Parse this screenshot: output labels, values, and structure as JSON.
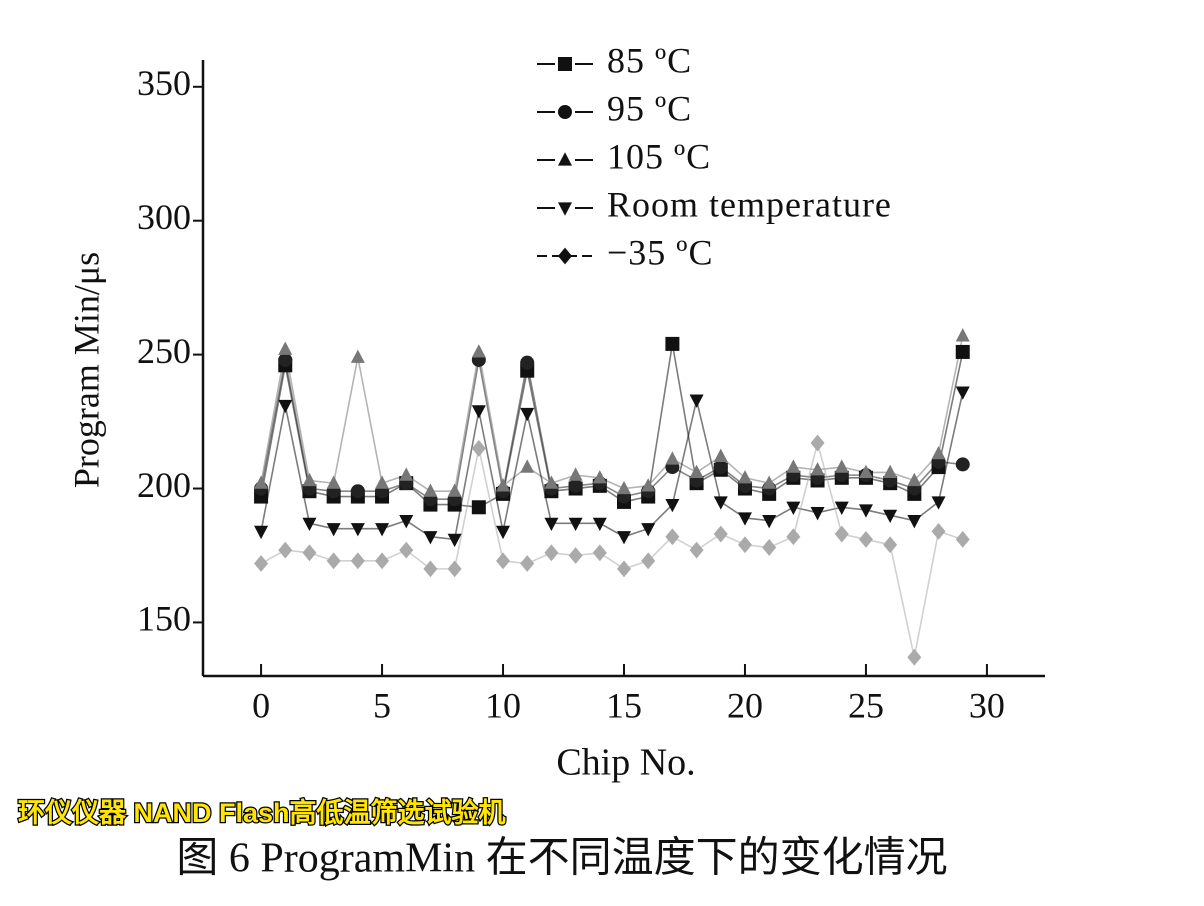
{
  "chart_data": {
    "type": "line",
    "xlabel": "Chip No.",
    "ylabel": "Program Min/μs",
    "x": [
      0,
      1,
      2,
      3,
      4,
      5,
      6,
      7,
      8,
      9,
      10,
      11,
      12,
      13,
      14,
      15,
      16,
      17,
      18,
      19,
      20,
      21,
      22,
      23,
      24,
      25,
      26,
      27,
      28,
      29
    ],
    "series": [
      {
        "name": "85 ºC",
        "color": "#111111",
        "marker": "square",
        "values": [
          197,
          246,
          199,
          197,
          197,
          197,
          202,
          194,
          194,
          193,
          198,
          244,
          199,
          200,
          201,
          195,
          197,
          254,
          202,
          207,
          200,
          198,
          204,
          203,
          204,
          204,
          202,
          198,
          208,
          251
        ]
      },
      {
        "name": "95 ºC",
        "color": "#222222",
        "marker": "circle",
        "values": [
          200,
          248,
          200,
          199,
          199,
          199,
          202,
          196,
          196,
          248,
          199,
          247,
          200,
          201,
          202,
          197,
          199,
          208,
          203,
          208,
          201,
          200,
          205,
          204,
          205,
          205,
          203,
          200,
          210,
          209
        ]
      },
      {
        "name": "105 ºC",
        "color": "#777777",
        "marker": "triangle",
        "values": [
          202,
          252,
          203,
          202,
          249,
          202,
          205,
          199,
          199,
          251,
          201,
          208,
          202,
          205,
          204,
          200,
          201,
          211,
          206,
          212,
          204,
          202,
          208,
          207,
          208,
          206,
          206,
          203,
          213,
          257
        ]
      },
      {
        "name": "Room temperature",
        "color": "#111111",
        "marker": "triangle-down",
        "values": [
          184,
          231,
          187,
          185,
          185,
          185,
          188,
          182,
          181,
          229,
          184,
          228,
          187,
          187,
          187,
          182,
          185,
          194,
          233,
          195,
          189,
          188,
          193,
          191,
          193,
          192,
          190,
          188,
          195,
          236
        ]
      },
      {
        "name": "−35 ºC",
        "color": "#aaaaaa",
        "marker": "diamond",
        "values": [
          172,
          177,
          176,
          173,
          173,
          173,
          177,
          170,
          170,
          215,
          173,
          172,
          176,
          175,
          176,
          170,
          173,
          182,
          177,
          183,
          179,
          178,
          182,
          217,
          183,
          181,
          179,
          137,
          184,
          181
        ]
      }
    ],
    "xlim": [
      -2.4,
      32.4
    ],
    "xticks": [
      0,
      5,
      10,
      15,
      20,
      25,
      30
    ],
    "ylim": [
      130,
      360
    ],
    "yticks": [
      150,
      200,
      250,
      300,
      350
    ]
  },
  "watermark": "环仪仪器 NAND Flash高低温筛选试验机",
  "caption": "图 6 ProgramMin 在不同温度下的变化情况"
}
